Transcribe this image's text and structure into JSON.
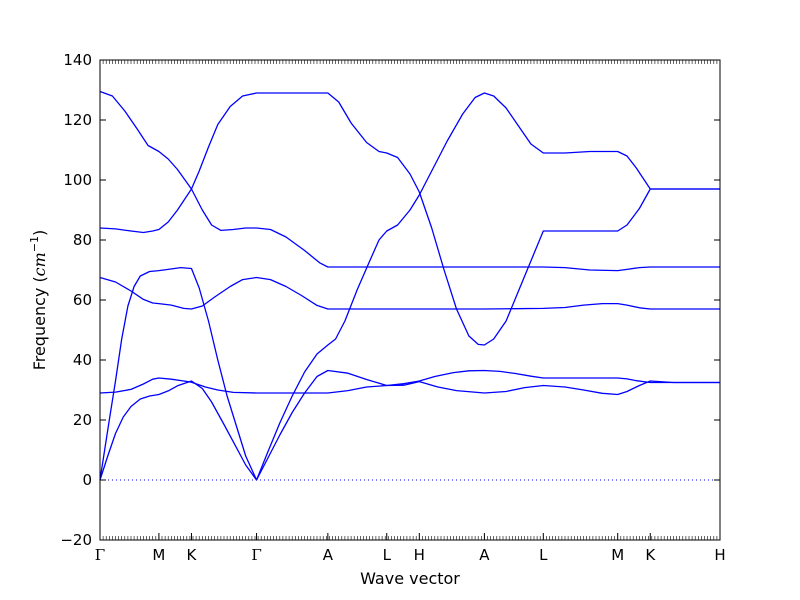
{
  "chart_data": {
    "type": "line",
    "title": "",
    "xlabel": "Wave vector",
    "ylabel_main": "Frequency (",
    "ylabel_unit_base": "cm",
    "ylabel_unit_exp": "−1",
    "ylabel_close": ")",
    "ylim": [
      -20,
      140
    ],
    "yticks": [
      -20,
      0,
      20,
      40,
      60,
      80,
      100,
      120,
      140
    ],
    "ytick_labels": [
      "−20",
      "0",
      "20",
      "40",
      "60",
      "80",
      "100",
      "120",
      "140"
    ],
    "xlim": [
      0,
      20
    ],
    "xticks": [
      {
        "x": 0,
        "label": "Γ"
      },
      {
        "x": 1.9,
        "label": "M"
      },
      {
        "x": 2.95,
        "label": "K"
      },
      {
        "x": 5.05,
        "label": "Γ"
      },
      {
        "x": 7.35,
        "label": "A"
      },
      {
        "x": 9.25,
        "label": "L"
      },
      {
        "x": 10.3,
        "label": "H"
      },
      {
        "x": 12.4,
        "label": "A"
      },
      {
        "x": 14.3,
        "label": "L"
      },
      {
        "x": 16.7,
        "label": "M"
      },
      {
        "x": 17.75,
        "label": "K"
      },
      {
        "x": 20,
        "label": "H"
      }
    ],
    "zero_line": true,
    "line_color": "#0000ff",
    "series": [
      {
        "points": [
          [
            0,
            0
          ],
          [
            0.25,
            8
          ],
          [
            0.5,
            15.5
          ],
          [
            0.75,
            21
          ],
          [
            1.0,
            24.5
          ],
          [
            1.3,
            27
          ],
          [
            1.6,
            28
          ],
          [
            1.9,
            28.5
          ],
          [
            2.2,
            29.7
          ],
          [
            2.5,
            31.4
          ],
          [
            2.95,
            33
          ],
          [
            3.3,
            30.5
          ],
          [
            3.6,
            26
          ],
          [
            4.0,
            18.5
          ],
          [
            4.4,
            10.8
          ],
          [
            4.7,
            5
          ],
          [
            5.05,
            0
          ],
          [
            5.4,
            7
          ],
          [
            5.8,
            15
          ],
          [
            6.2,
            22.5
          ],
          [
            6.6,
            29
          ],
          [
            7.0,
            34.5
          ],
          [
            7.35,
            36.5
          ],
          [
            8.0,
            35.6
          ],
          [
            8.6,
            33.5
          ],
          [
            9.25,
            31.5
          ],
          [
            9.8,
            32.1
          ],
          [
            10.3,
            33
          ],
          [
            10.8,
            34.5
          ],
          [
            11.4,
            35.8
          ],
          [
            11.9,
            36.4
          ],
          [
            12.4,
            36.5
          ],
          [
            12.9,
            36.2
          ],
          [
            13.4,
            35.5
          ],
          [
            13.9,
            34.6
          ],
          [
            14.3,
            34
          ],
          [
            15.0,
            34
          ],
          [
            15.8,
            34
          ],
          [
            16.7,
            34
          ],
          [
            17.0,
            33.7
          ],
          [
            17.3,
            33.1
          ],
          [
            17.75,
            32.5
          ],
          [
            18.5,
            32.5
          ],
          [
            19.3,
            32.5
          ],
          [
            20,
            32.5
          ]
        ]
      },
      {
        "points": [
          [
            0,
            0
          ],
          [
            0.15,
            10
          ],
          [
            0.3,
            20
          ],
          [
            0.5,
            33
          ],
          [
            0.7,
            47
          ],
          [
            0.9,
            58
          ],
          [
            1.1,
            64.5
          ],
          [
            1.3,
            68
          ],
          [
            1.6,
            69.5
          ],
          [
            1.9,
            69.8
          ],
          [
            2.2,
            70.2
          ],
          [
            2.6,
            70.8
          ],
          [
            2.95,
            70.5
          ],
          [
            3.2,
            64
          ],
          [
            3.5,
            53
          ],
          [
            3.8,
            40
          ],
          [
            4.1,
            28
          ],
          [
            4.4,
            18
          ],
          [
            4.7,
            8
          ],
          [
            5.05,
            0
          ],
          [
            5.4,
            9
          ],
          [
            5.8,
            19
          ],
          [
            6.2,
            28
          ],
          [
            6.6,
            36
          ],
          [
            7.0,
            42
          ],
          [
            7.35,
            45
          ],
          [
            7.6,
            47
          ],
          [
            7.9,
            53
          ],
          [
            8.3,
            63.5
          ],
          [
            8.7,
            73
          ],
          [
            9.0,
            80
          ],
          [
            9.25,
            83
          ],
          [
            9.6,
            85
          ],
          [
            10.0,
            90
          ],
          [
            10.3,
            95
          ],
          [
            10.7,
            103
          ],
          [
            11.2,
            113
          ],
          [
            11.7,
            122
          ],
          [
            12.1,
            127.5
          ],
          [
            12.4,
            129
          ],
          [
            12.7,
            128
          ],
          [
            13.1,
            124
          ],
          [
            13.5,
            118
          ],
          [
            13.9,
            112
          ],
          [
            14.3,
            109
          ],
          [
            15.0,
            109
          ],
          [
            15.8,
            109.5
          ],
          [
            16.7,
            109.5
          ],
          [
            17.0,
            108
          ],
          [
            17.3,
            104
          ],
          [
            17.75,
            97
          ],
          [
            18.5,
            97
          ],
          [
            19.3,
            97
          ],
          [
            20,
            97
          ]
        ]
      },
      {
        "points": [
          [
            0,
            29
          ],
          [
            0.5,
            29.3
          ],
          [
            1.0,
            30.2
          ],
          [
            1.4,
            32
          ],
          [
            1.7,
            33.6
          ],
          [
            1.9,
            34
          ],
          [
            2.3,
            33.6
          ],
          [
            2.7,
            33
          ],
          [
            2.95,
            32.6
          ],
          [
            3.4,
            31
          ],
          [
            3.8,
            30
          ],
          [
            4.3,
            29.2
          ],
          [
            5.05,
            29
          ],
          [
            5.6,
            29
          ],
          [
            6.4,
            29
          ],
          [
            7.35,
            29
          ],
          [
            8.0,
            29.8
          ],
          [
            8.6,
            31
          ],
          [
            9.25,
            31.5
          ],
          [
            9.8,
            31.6
          ],
          [
            10.3,
            32.8
          ],
          [
            10.9,
            31
          ],
          [
            11.5,
            29.8
          ],
          [
            12.4,
            29
          ],
          [
            13.1,
            29.5
          ],
          [
            13.7,
            30.8
          ],
          [
            14.3,
            31.5
          ],
          [
            15.0,
            31
          ],
          [
            15.6,
            30
          ],
          [
            16.2,
            28.9
          ],
          [
            16.7,
            28.5
          ],
          [
            17.0,
            29.5
          ],
          [
            17.4,
            31.5
          ],
          [
            17.75,
            33
          ],
          [
            18.5,
            32.5
          ],
          [
            19.3,
            32.5
          ],
          [
            20,
            32.5
          ]
        ]
      },
      {
        "points": [
          [
            0,
            67.5
          ],
          [
            0.5,
            66
          ],
          [
            1.0,
            63
          ],
          [
            1.4,
            60.2
          ],
          [
            1.7,
            59
          ],
          [
            1.9,
            58.8
          ],
          [
            2.3,
            58.3
          ],
          [
            2.7,
            57.2
          ],
          [
            2.95,
            57
          ],
          [
            3.3,
            58
          ],
          [
            3.7,
            61
          ],
          [
            4.2,
            64.5
          ],
          [
            4.6,
            66.8
          ],
          [
            5.05,
            67.5
          ],
          [
            5.5,
            66.8
          ],
          [
            6.0,
            64.5
          ],
          [
            6.5,
            61.5
          ],
          [
            7.0,
            58.2
          ],
          [
            7.35,
            57
          ],
          [
            8.3,
            57
          ],
          [
            9.25,
            57
          ],
          [
            10.3,
            57
          ],
          [
            11.4,
            57
          ],
          [
            12.4,
            57
          ],
          [
            13.4,
            57.1
          ],
          [
            14.3,
            57.2
          ],
          [
            15.0,
            57.5
          ],
          [
            15.6,
            58.3
          ],
          [
            16.2,
            58.8
          ],
          [
            16.7,
            58.8
          ],
          [
            17.0,
            58.3
          ],
          [
            17.4,
            57.4
          ],
          [
            17.75,
            57
          ],
          [
            18.5,
            57
          ],
          [
            19.3,
            57
          ],
          [
            20,
            57
          ]
        ]
      },
      {
        "points": [
          [
            0,
            84
          ],
          [
            0.5,
            83.7
          ],
          [
            1.0,
            83
          ],
          [
            1.4,
            82.5
          ],
          [
            1.7,
            83
          ],
          [
            1.9,
            83.5
          ],
          [
            2.2,
            86
          ],
          [
            2.5,
            90
          ],
          [
            2.95,
            97
          ],
          [
            3.2,
            103
          ],
          [
            3.5,
            111
          ],
          [
            3.8,
            118.5
          ],
          [
            4.2,
            124.5
          ],
          [
            4.6,
            128
          ],
          [
            5.05,
            129
          ],
          [
            5.6,
            129
          ],
          [
            6.4,
            129
          ],
          [
            7.35,
            129
          ],
          [
            7.7,
            126
          ],
          [
            8.1,
            119
          ],
          [
            8.6,
            112.5
          ],
          [
            9.0,
            109.5
          ],
          [
            9.25,
            109
          ],
          [
            9.6,
            107.5
          ],
          [
            10.0,
            102
          ],
          [
            10.3,
            96
          ],
          [
            10.7,
            84
          ],
          [
            11.1,
            70
          ],
          [
            11.5,
            57
          ],
          [
            11.9,
            48
          ],
          [
            12.2,
            45.2
          ],
          [
            12.4,
            45
          ],
          [
            12.7,
            47
          ],
          [
            13.1,
            53
          ],
          [
            13.5,
            63
          ],
          [
            13.9,
            73
          ],
          [
            14.3,
            83
          ],
          [
            15.0,
            83
          ],
          [
            15.8,
            83
          ],
          [
            16.7,
            83
          ],
          [
            17.0,
            85
          ],
          [
            17.4,
            90.5
          ],
          [
            17.75,
            97
          ],
          [
            18.5,
            97
          ],
          [
            19.3,
            97
          ],
          [
            20,
            97
          ]
        ]
      },
      {
        "points": [
          [
            0,
            129.5
          ],
          [
            0.4,
            128
          ],
          [
            0.8,
            123
          ],
          [
            1.2,
            117
          ],
          [
            1.55,
            111.5
          ],
          [
            1.9,
            109.5
          ],
          [
            2.2,
            107
          ],
          [
            2.5,
            103.5
          ],
          [
            2.95,
            97
          ],
          [
            3.3,
            90
          ],
          [
            3.6,
            85
          ],
          [
            3.9,
            83.2
          ],
          [
            4.3,
            83.5
          ],
          [
            4.7,
            84
          ],
          [
            5.05,
            84
          ],
          [
            5.5,
            83.5
          ],
          [
            6.0,
            81
          ],
          [
            6.6,
            76.5
          ],
          [
            7.1,
            72.3
          ],
          [
            7.35,
            71
          ],
          [
            8.3,
            71
          ],
          [
            9.25,
            71
          ],
          [
            10.3,
            71
          ],
          [
            11.4,
            71
          ],
          [
            12.4,
            71
          ],
          [
            13.4,
            71
          ],
          [
            14.3,
            71
          ],
          [
            15.0,
            70.8
          ],
          [
            15.8,
            70
          ],
          [
            16.7,
            69.8
          ],
          [
            17.0,
            70.2
          ],
          [
            17.4,
            70.8
          ],
          [
            17.75,
            71
          ],
          [
            18.5,
            71
          ],
          [
            19.3,
            71
          ],
          [
            20,
            71
          ]
        ]
      }
    ]
  }
}
